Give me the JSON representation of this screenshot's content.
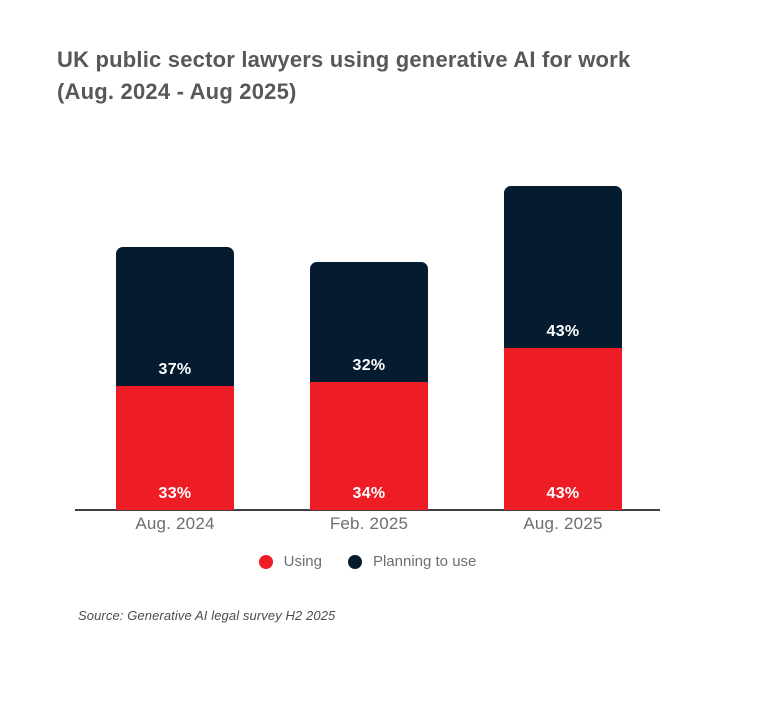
{
  "title": "UK public sector lawyers using generative AI for work\n(Aug. 2024 - Aug 2025)",
  "source": "Source: Generative AI legal survey H2 2025",
  "colors": {
    "using_red": "#ee1c25",
    "planning_navy": "#051b30",
    "title_gray": "#57585a",
    "axis_label_gray": "#6d6e70",
    "axis_line_gray": "#414143",
    "value_label_white": "#ffffff"
  },
  "chart_data": {
    "type": "bar",
    "stacked": true,
    "title": "UK public sector lawyers using generative AI for work (Aug. 2024 - Aug 2025)",
    "categories": [
      "Aug. 2024",
      "Feb. 2025",
      "Aug. 2025"
    ],
    "series": [
      {
        "name": "Using",
        "color": "#ee1c25",
        "values": [
          33,
          34,
          43
        ]
      },
      {
        "name": "Planning to use",
        "color": "#051b30",
        "values": [
          37,
          32,
          43
        ]
      }
    ],
    "value_label_format": "{v}%",
    "xlabel": "",
    "ylabel": "",
    "ylim": [
      0,
      100
    ],
    "grid": false,
    "legend_position": "bottom"
  }
}
